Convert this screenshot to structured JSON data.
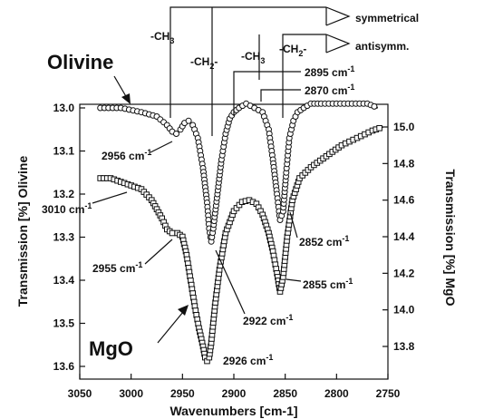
{
  "chart_data": {
    "type": "line",
    "xlabel": "Wavenumbers [cm-1]",
    "ylabel_left": "Transmission [%] Olivine",
    "ylabel_right": "Transmission [%] MgO",
    "xlim": [
      3050,
      2750
    ],
    "ylim_left": [
      13.0,
      13.6
    ],
    "ylim_right": [
      15.0,
      13.8
    ],
    "x_ticks": [
      "3050",
      "3000",
      "2950",
      "2900",
      "2850",
      "2800",
      "2750"
    ],
    "left_ticks": [
      "13.0",
      "13.1",
      "13.2",
      "13.3",
      "13.4",
      "13.5",
      "13.6"
    ],
    "right_ticks": [
      "15.0",
      "14.8",
      "14.6",
      "14.4",
      "14.2",
      "14.0",
      "13.8"
    ],
    "series": [
      {
        "name": "Olivine",
        "axis": "left",
        "marker": "circle",
        "x": [
          3030,
          3010,
          2990,
          2975,
          2965,
          2960,
          2956,
          2952,
          2948,
          2944,
          2940,
          2935,
          2930,
          2926,
          2924,
          2922,
          2920,
          2916,
          2912,
          2908,
          2904,
          2900,
          2895,
          2888,
          2880,
          2872,
          2866,
          2862,
          2858,
          2855,
          2852,
          2849,
          2846,
          2842,
          2838,
          2832,
          2825,
          2815,
          2800,
          2785,
          2770,
          2760
        ],
        "values": [
          13.0,
          13.0,
          13.01,
          13.02,
          13.04,
          13.055,
          13.06,
          13.05,
          13.035,
          13.03,
          13.04,
          13.07,
          13.14,
          13.22,
          13.28,
          13.31,
          13.28,
          13.2,
          13.12,
          13.06,
          13.025,
          13.01,
          13.0,
          12.99,
          13.0,
          13.01,
          13.05,
          13.12,
          13.2,
          13.26,
          13.24,
          13.15,
          13.07,
          13.03,
          13.01,
          13.0,
          12.99,
          12.99,
          12.99,
          12.99,
          12.99,
          13.0
        ]
      },
      {
        "name": "MgO",
        "axis": "right",
        "marker": "square",
        "x": [
          3030,
          3020,
          3010,
          3000,
          2990,
          2980,
          2975,
          2970,
          2965,
          2960,
          2955,
          2950,
          2946,
          2942,
          2938,
          2934,
          2930,
          2928,
          2926,
          2924,
          2922,
          2918,
          2914,
          2908,
          2900,
          2892,
          2885,
          2878,
          2872,
          2866,
          2862,
          2858,
          2855,
          2852,
          2848,
          2843,
          2836,
          2825,
          2810,
          2795,
          2780,
          2765,
          2755
        ],
        "values": [
          14.72,
          14.72,
          14.7,
          14.68,
          14.66,
          14.6,
          14.55,
          14.5,
          14.44,
          14.42,
          14.42,
          14.4,
          14.3,
          14.16,
          14.02,
          13.9,
          13.8,
          13.74,
          13.72,
          13.74,
          13.82,
          14.04,
          14.22,
          14.42,
          14.54,
          14.59,
          14.6,
          14.58,
          14.52,
          14.42,
          14.32,
          14.2,
          14.1,
          14.18,
          14.4,
          14.6,
          14.72,
          14.78,
          14.84,
          14.9,
          14.94,
          14.98,
          15.0
        ]
      }
    ],
    "annotations": {
      "olivine_label": "Olivine",
      "mgo_label": "MgO",
      "symmetrical": "symmetrical",
      "antisymmetrical": "antisymm.",
      "ch3_left": "-CH",
      "ch3_left_sub": "3",
      "ch2_left": "-CH",
      "ch2_left_sub": "2",
      "ch2_left_tail": "-",
      "ch3_right": "-CH",
      "ch3_right_sub": "3",
      "ch2_right": "-CH",
      "ch2_right_sub": "2",
      "ch2_right_tail": "-",
      "p2895": "2895 cm",
      "p2870": "2870 cm",
      "p2956": "2956 cm",
      "p3010": "3010 cm",
      "p2955": "2955 cm",
      "p2852": "2852 cm",
      "p2855": "2855 cm",
      "p2922": "2922 cm",
      "p2926": "2926 cm",
      "sup": "-1"
    }
  }
}
